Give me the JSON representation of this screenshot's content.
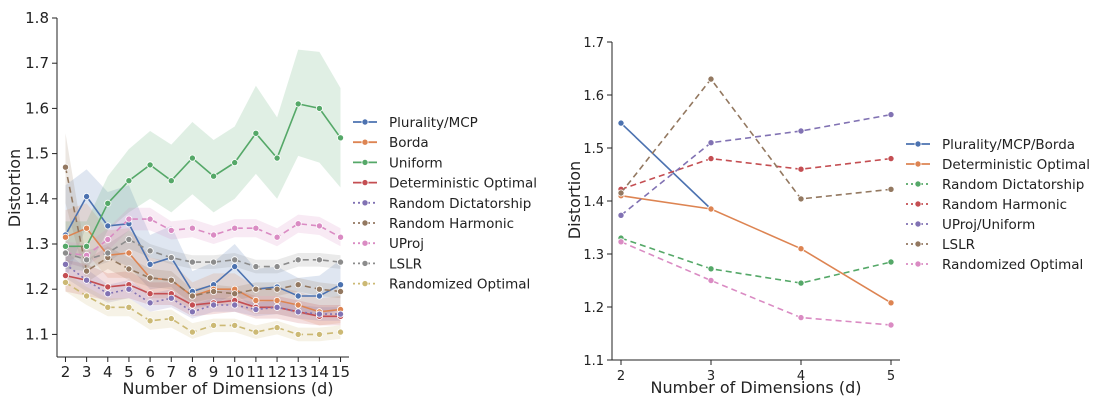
{
  "chart_data": [
    {
      "type": "line",
      "title": "",
      "xlabel": "Number of Dimensions (d)",
      "ylabel": "Distortion",
      "xlim": [
        1.6,
        15.4
      ],
      "ylim": [
        1.05,
        1.8
      ],
      "yticks": [
        "1.1",
        "1.2",
        "1.3",
        "1.4",
        "1.5",
        "1.6",
        "1.7",
        "1.8"
      ],
      "ytick_values": [
        1.1,
        1.2,
        1.3,
        1.4,
        1.5,
        1.6,
        1.7,
        1.8
      ],
      "xticks": [
        "2",
        "3",
        "4",
        "5",
        "6",
        "7",
        "8",
        "9",
        "10",
        "11",
        "12",
        "13",
        "14",
        "15"
      ],
      "x": [
        2,
        3,
        4,
        5,
        6,
        7,
        8,
        9,
        10,
        11,
        12,
        13,
        14,
        15
      ],
      "legend_position": "right",
      "series": [
        {
          "name": "Plurality/MCP",
          "color": "#4c72b0",
          "style": "solid",
          "values": [
            1.32,
            1.405,
            1.34,
            1.345,
            1.255,
            1.27,
            1.195,
            1.21,
            1.25,
            1.2,
            1.205,
            1.185,
            1.185,
            1.21
          ],
          "band_lower": [
            1.22,
            1.34,
            1.27,
            1.25,
            1.2,
            1.205,
            1.16,
            1.165,
            1.19,
            1.155,
            1.16,
            1.145,
            1.14,
            1.155
          ],
          "band_upper": [
            1.43,
            1.465,
            1.415,
            1.43,
            1.32,
            1.34,
            1.24,
            1.26,
            1.3,
            1.245,
            1.25,
            1.225,
            1.23,
            1.265
          ]
        },
        {
          "name": "Borda",
          "color": "#dd8452",
          "style": "solid",
          "values": [
            1.315,
            1.335,
            1.275,
            1.28,
            1.225,
            1.22,
            1.185,
            1.2,
            1.2,
            1.175,
            1.175,
            1.165,
            1.15,
            1.155
          ],
          "band_lower": [
            1.26,
            1.28,
            1.225,
            1.225,
            1.18,
            1.18,
            1.155,
            1.165,
            1.165,
            1.145,
            1.145,
            1.135,
            1.12,
            1.125
          ],
          "band_upper": [
            1.375,
            1.39,
            1.33,
            1.335,
            1.27,
            1.26,
            1.215,
            1.235,
            1.235,
            1.205,
            1.205,
            1.195,
            1.18,
            1.185
          ]
        },
        {
          "name": "Uniform",
          "color": "#55a868",
          "style": "solid",
          "values": [
            1.295,
            1.295,
            1.39,
            1.44,
            1.475,
            1.44,
            1.49,
            1.45,
            1.48,
            1.545,
            1.49,
            1.61,
            1.6,
            1.535
          ],
          "band_lower": [
            1.245,
            1.24,
            1.33,
            1.37,
            1.4,
            1.37,
            1.41,
            1.37,
            1.4,
            1.455,
            1.4,
            1.495,
            1.48,
            1.425
          ],
          "band_upper": [
            1.35,
            1.35,
            1.45,
            1.51,
            1.55,
            1.52,
            1.57,
            1.53,
            1.56,
            1.65,
            1.58,
            1.73,
            1.725,
            1.645
          ]
        },
        {
          "name": "Deterministic Optimal",
          "color": "#c44e52",
          "style": "solid",
          "values": [
            1.23,
            1.22,
            1.205,
            1.21,
            1.19,
            1.19,
            1.165,
            1.17,
            1.175,
            1.16,
            1.16,
            1.15,
            1.14,
            1.14
          ],
          "band_lower": [
            1.195,
            1.185,
            1.175,
            1.18,
            1.165,
            1.165,
            1.14,
            1.145,
            1.15,
            1.135,
            1.135,
            1.125,
            1.12,
            1.12
          ],
          "band_upper": [
            1.265,
            1.255,
            1.235,
            1.24,
            1.215,
            1.215,
            1.19,
            1.195,
            1.2,
            1.185,
            1.185,
            1.175,
            1.165,
            1.165
          ]
        },
        {
          "name": "Random Dictatorship",
          "color": "#8172b3",
          "style": "dotted",
          "values": [
            1.255,
            1.22,
            1.19,
            1.2,
            1.17,
            1.18,
            1.15,
            1.165,
            1.165,
            1.155,
            1.16,
            1.15,
            1.145,
            1.145
          ],
          "band_lower": [
            1.225,
            1.195,
            1.17,
            1.18,
            1.15,
            1.16,
            1.135,
            1.15,
            1.15,
            1.14,
            1.145,
            1.135,
            1.13,
            1.13
          ],
          "band_upper": [
            1.285,
            1.245,
            1.21,
            1.22,
            1.19,
            1.2,
            1.165,
            1.18,
            1.18,
            1.17,
            1.175,
            1.165,
            1.16,
            1.16
          ]
        },
        {
          "name": "Random Harmonic",
          "color": "#937860",
          "style": "dashed",
          "values": [
            1.47,
            1.24,
            1.27,
            1.245,
            1.225,
            1.22,
            1.185,
            1.195,
            1.19,
            1.2,
            1.2,
            1.21,
            1.2,
            1.195
          ],
          "band_lower": [
            1.39,
            1.215,
            1.245,
            1.22,
            1.205,
            1.2,
            1.17,
            1.18,
            1.175,
            1.185,
            1.185,
            1.195,
            1.185,
            1.18
          ],
          "band_upper": [
            1.545,
            1.265,
            1.295,
            1.27,
            1.245,
            1.24,
            1.2,
            1.21,
            1.205,
            1.215,
            1.215,
            1.225,
            1.215,
            1.21
          ]
        },
        {
          "name": "UProj",
          "color": "#da8bc3",
          "style": "dashed",
          "values": [
            1.28,
            1.275,
            1.31,
            1.355,
            1.355,
            1.33,
            1.335,
            1.32,
            1.335,
            1.335,
            1.315,
            1.345,
            1.34,
            1.315
          ],
          "band_lower": [
            1.255,
            1.25,
            1.285,
            1.33,
            1.33,
            1.31,
            1.315,
            1.3,
            1.315,
            1.315,
            1.295,
            1.325,
            1.32,
            1.295
          ],
          "band_upper": [
            1.305,
            1.3,
            1.335,
            1.38,
            1.38,
            1.35,
            1.355,
            1.34,
            1.355,
            1.355,
            1.335,
            1.365,
            1.36,
            1.335
          ]
        },
        {
          "name": "LSLR",
          "color": "#8c8c8c",
          "style": "dashed",
          "values": [
            1.28,
            1.265,
            1.28,
            1.31,
            1.285,
            1.27,
            1.26,
            1.26,
            1.265,
            1.25,
            1.25,
            1.265,
            1.265,
            1.26
          ],
          "band_lower": [
            1.26,
            1.245,
            1.26,
            1.29,
            1.27,
            1.255,
            1.245,
            1.245,
            1.25,
            1.235,
            1.235,
            1.25,
            1.25,
            1.245
          ],
          "band_upper": [
            1.3,
            1.285,
            1.3,
            1.33,
            1.3,
            1.285,
            1.275,
            1.275,
            1.28,
            1.265,
            1.265,
            1.28,
            1.28,
            1.275
          ]
        },
        {
          "name": "Randomized Optimal",
          "color": "#ccb974",
          "style": "dashed",
          "values": [
            1.215,
            1.185,
            1.16,
            1.16,
            1.13,
            1.135,
            1.105,
            1.12,
            1.12,
            1.105,
            1.115,
            1.1,
            1.1,
            1.105
          ],
          "band_lower": [
            1.195,
            1.165,
            1.14,
            1.14,
            1.11,
            1.115,
            1.09,
            1.105,
            1.105,
            1.09,
            1.1,
            1.085,
            1.085,
            1.09
          ],
          "band_upper": [
            1.235,
            1.205,
            1.18,
            1.18,
            1.15,
            1.155,
            1.125,
            1.135,
            1.135,
            1.12,
            1.13,
            1.115,
            1.115,
            1.12
          ]
        }
      ]
    },
    {
      "type": "line",
      "title": "",
      "xlabel": "Number of Dimensions (d)",
      "ylabel": "Distortion",
      "xlim": [
        1.9,
        5.1
      ],
      "ylim": [
        1.1,
        1.7
      ],
      "yticks": [
        "1.1",
        "1.2",
        "1.3",
        "1.4",
        "1.5",
        "1.6",
        "1.7"
      ],
      "ytick_values": [
        1.1,
        1.2,
        1.3,
        1.4,
        1.5,
        1.6,
        1.7
      ],
      "xticks": [
        "2",
        "3",
        "4",
        "5"
      ],
      "x": [
        2,
        3,
        4,
        5
      ],
      "legend_position": "right",
      "series": [
        {
          "name": "Plurality/MCP/Borda",
          "color": "#4c72b0",
          "style": "solid",
          "values": [
            1.547,
            1.385,
            null,
            null
          ]
        },
        {
          "name": "Deterministic Optimal",
          "color": "#dd8452",
          "style": "solid",
          "values": [
            1.41,
            1.385,
            1.31,
            1.208
          ]
        },
        {
          "name": "Random Dictatorship",
          "color": "#55a868",
          "style": "dashed",
          "values": [
            1.33,
            1.272,
            1.245,
            1.285
          ]
        },
        {
          "name": "Random Harmonic",
          "color": "#c44e52",
          "style": "dashed",
          "values": [
            1.422,
            1.48,
            1.46,
            1.48
          ]
        },
        {
          "name": "UProj/Uniform",
          "color": "#8172b3",
          "style": "dashed",
          "values": [
            1.373,
            1.51,
            1.532,
            1.563
          ]
        },
        {
          "name": "LSLR",
          "color": "#937860",
          "style": "dashed",
          "values": [
            1.415,
            1.63,
            1.404,
            1.422
          ]
        },
        {
          "name": "Randomized Optimal",
          "color": "#da8bc3",
          "style": "dashed",
          "values": [
            1.323,
            1.25,
            1.18,
            1.166
          ]
        }
      ]
    }
  ]
}
